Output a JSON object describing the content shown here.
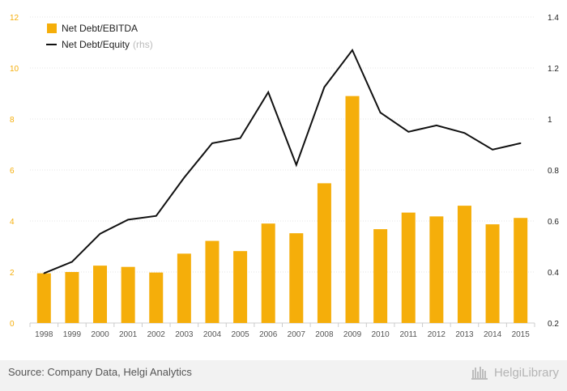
{
  "chart_data": {
    "type": "bar",
    "categories": [
      "1998",
      "1999",
      "2000",
      "2001",
      "2002",
      "2003",
      "2004",
      "2005",
      "2006",
      "2007",
      "2008",
      "2009",
      "2010",
      "2011",
      "2012",
      "2013",
      "2014",
      "2015"
    ],
    "series": [
      {
        "name": "Net Debt/EBITDA",
        "type": "bar",
        "axis": "left",
        "color": "#f5ae0a",
        "values": [
          1.95,
          2.0,
          2.25,
          2.2,
          1.98,
          2.72,
          3.22,
          2.82,
          3.9,
          3.52,
          5.48,
          8.9,
          3.68,
          4.33,
          4.18,
          4.6,
          3.87,
          4.12
        ]
      },
      {
        "name": "Net Debt/Equity",
        "type": "line",
        "axis": "right",
        "color": "#111111",
        "values": [
          0.395,
          0.44,
          0.55,
          0.605,
          0.62,
          0.77,
          0.905,
          0.925,
          1.105,
          0.82,
          1.125,
          1.27,
          1.025,
          0.95,
          0.975,
          0.945,
          0.88,
          0.905
        ]
      }
    ],
    "ylim_left": [
      0,
      12
    ],
    "yticks_left": [
      "0",
      "2",
      "4",
      "6",
      "8",
      "10",
      "12"
    ],
    "ylim_right": [
      0.2,
      1.4
    ],
    "yticks_right": [
      "0.2",
      "0.4",
      "0.6",
      "0.8",
      "1",
      "1.2",
      "1.4"
    ],
    "grid": true,
    "legend_position": "top-left",
    "legend_note": "(rhs)"
  },
  "footer": {
    "source": "Source: Company Data, Helgi Analytics",
    "brand": "HelgiLibrary",
    "brand_icon": "library-bars-icon"
  }
}
